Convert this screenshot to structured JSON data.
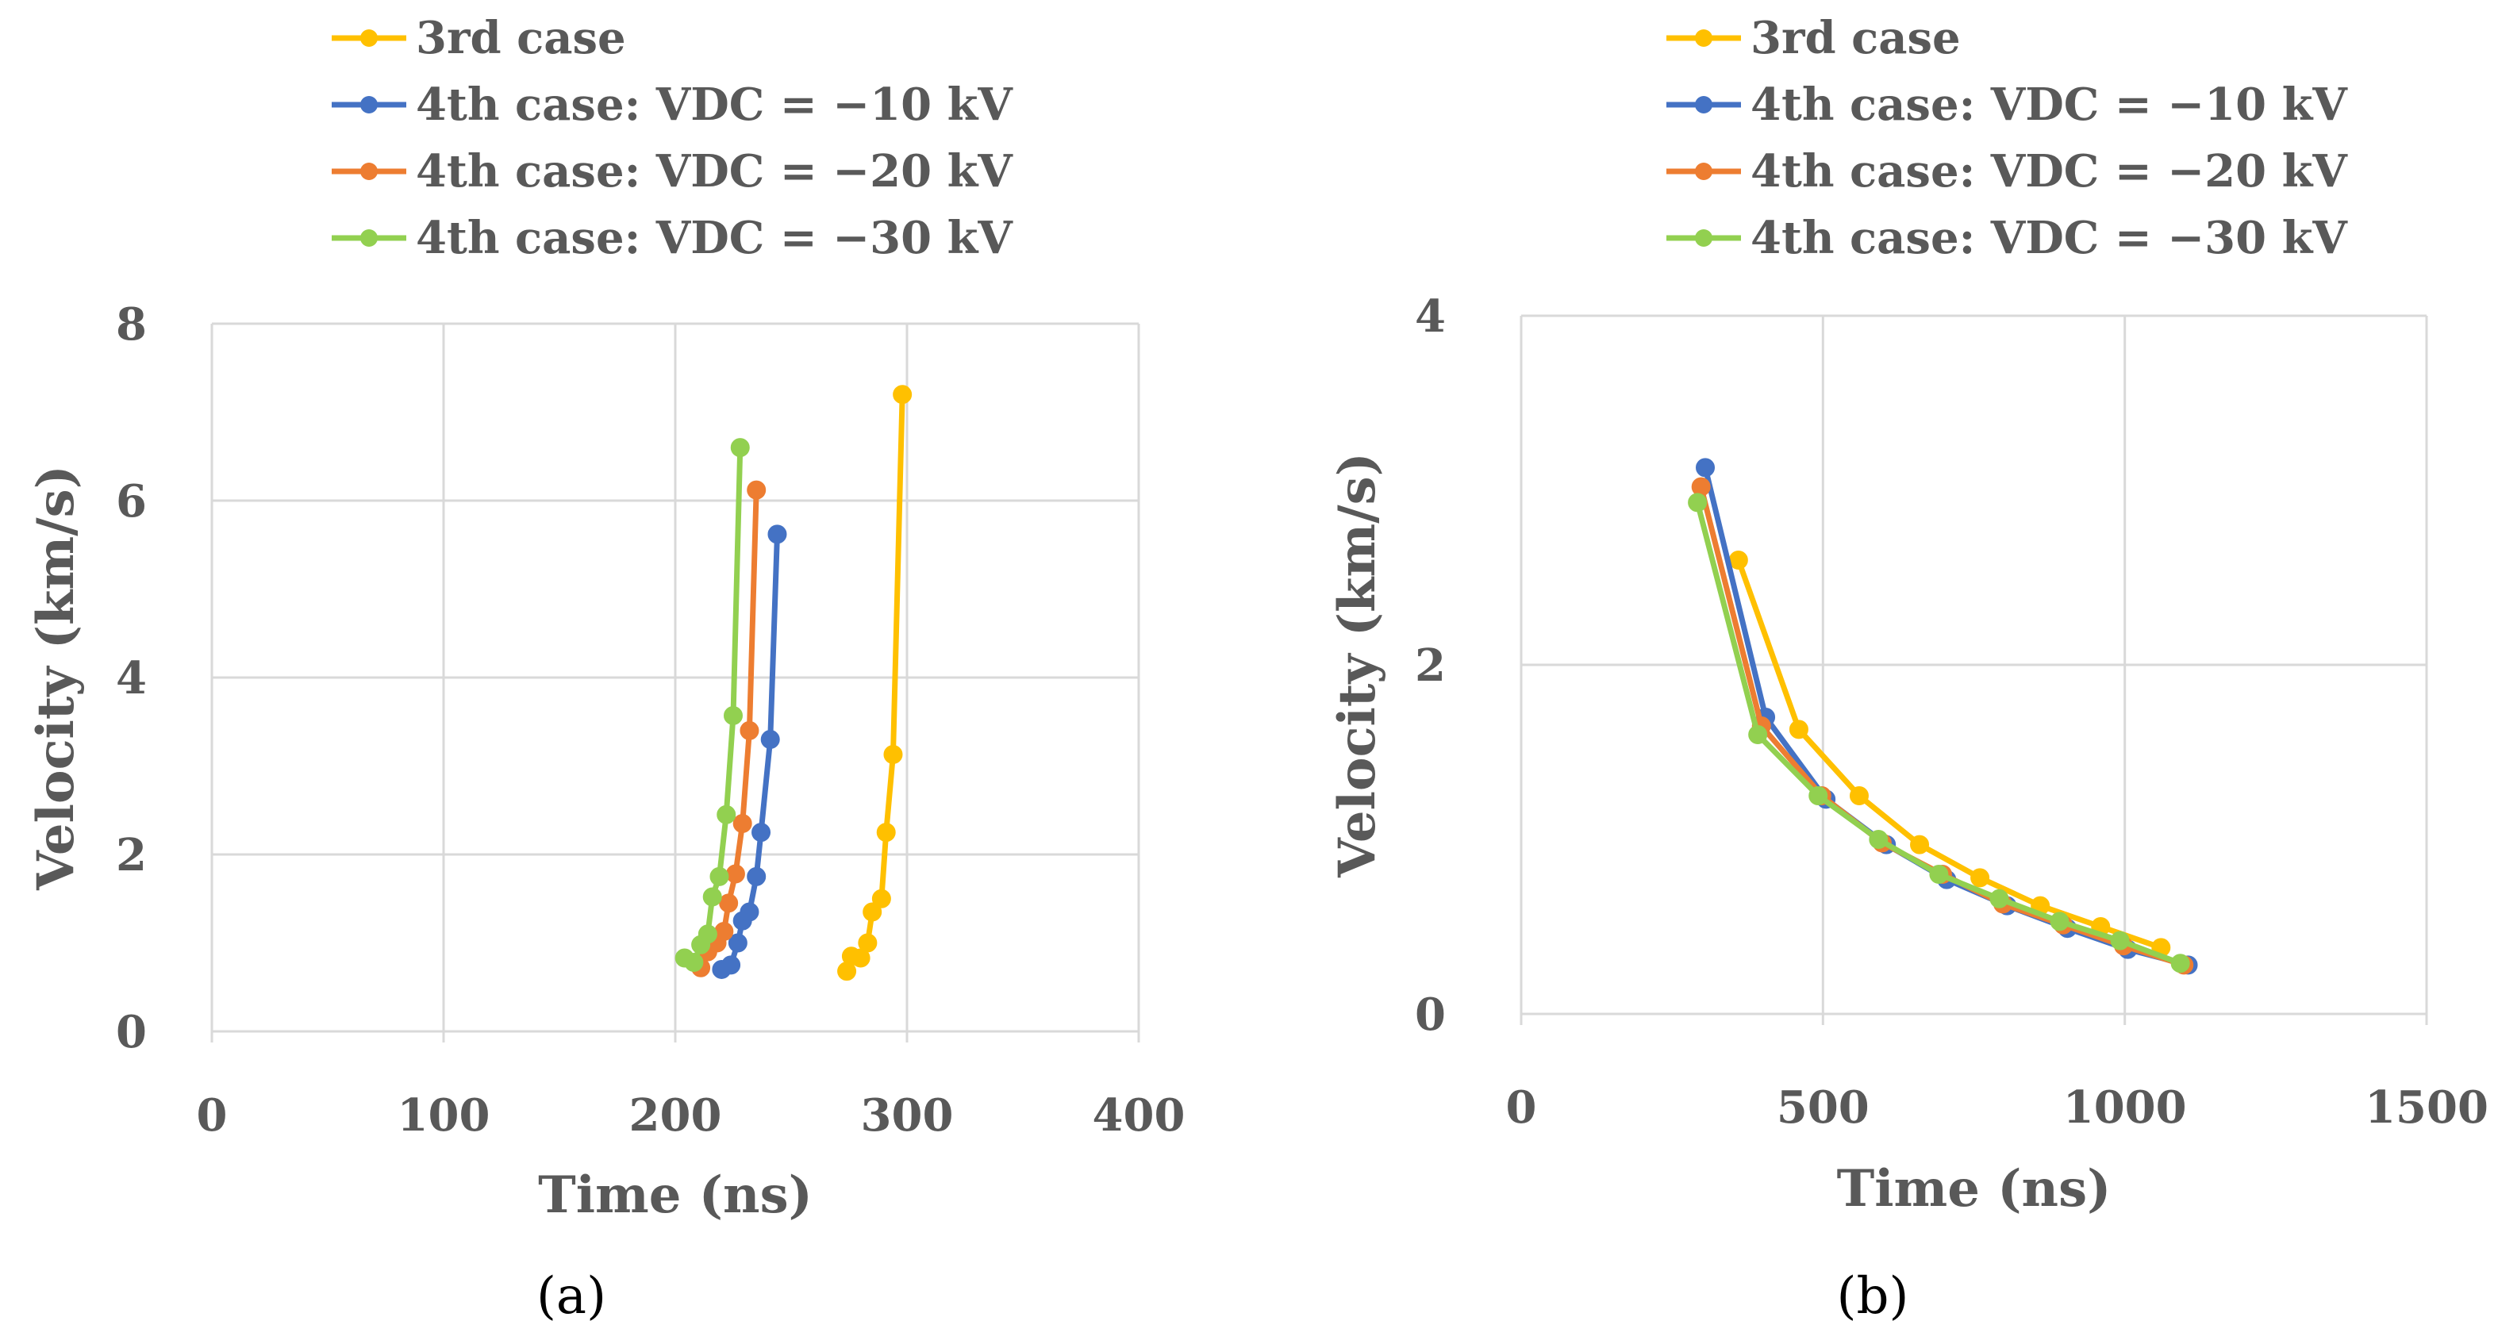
{
  "chart_data": [
    {
      "type": "line",
      "panel": "a",
      "panel_label": "(a)",
      "xlabel": "Time (ns)",
      "ylabel": "Velocity (km/s)",
      "xlim": [
        0,
        400
      ],
      "ylim": [
        0,
        8
      ],
      "xticks": [
        0,
        100,
        200,
        300,
        400
      ],
      "yticks": [
        0,
        2,
        4,
        6,
        8
      ],
      "xtick_labels": [
        "0",
        "100",
        "200",
        "300",
        "400"
      ],
      "ytick_labels": [
        "0",
        "2",
        "4",
        "6",
        "8"
      ],
      "grid": true,
      "legend_position": "top",
      "series": [
        {
          "name": "3rd case",
          "color": "#ffc000",
          "x": [
            274,
            276,
            280,
            283,
            285,
            289,
            291,
            294,
            298
          ],
          "y": [
            0.68,
            0.85,
            0.83,
            1.0,
            1.35,
            1.5,
            2.25,
            3.13,
            7.2
          ]
        },
        {
          "name": "4th case: VDC = −10 kV",
          "color": "#4472c4",
          "x": [
            220,
            224,
            227,
            229,
            232,
            235,
            237,
            241,
            244
          ],
          "y": [
            0.7,
            0.75,
            1.0,
            1.25,
            1.35,
            1.75,
            2.25,
            3.3,
            5.62
          ]
        },
        {
          "name": "4th case: VDC = −20 kV",
          "color": "#ed7d31",
          "x": [
            211,
            214,
            218,
            221,
            223,
            226,
            229,
            232,
            235
          ],
          "y": [
            0.72,
            0.9,
            1.0,
            1.13,
            1.45,
            1.78,
            2.35,
            3.4,
            6.12
          ]
        },
        {
          "name": "4th case: VDC = −30 kV",
          "color": "#92d050",
          "x": [
            204,
            208,
            211,
            214,
            216,
            219,
            222,
            225,
            228
          ],
          "y": [
            0.83,
            0.78,
            0.98,
            1.1,
            1.52,
            1.75,
            2.45,
            3.57,
            6.6
          ]
        }
      ]
    },
    {
      "type": "line",
      "panel": "b",
      "panel_label": "(b)",
      "xlabel": "Time (ns)",
      "ylabel": "Velocity (km/s)",
      "xlim": [
        0,
        1500
      ],
      "ylim": [
        0,
        4
      ],
      "xticks": [
        0,
        500,
        1000,
        1500
      ],
      "yticks": [
        0,
        2,
        4
      ],
      "xtick_labels": [
        "0",
        "500",
        "1000",
        "1500"
      ],
      "ytick_labels": [
        "0",
        "2",
        "4"
      ],
      "grid": true,
      "legend_position": "top",
      "series": [
        {
          "name": "3rd case",
          "color": "#ffc000",
          "x": [
            360,
            460,
            560,
            660,
            760,
            860,
            960,
            1060
          ],
          "y": [
            2.6,
            1.63,
            1.25,
            0.97,
            0.78,
            0.62,
            0.5,
            0.38
          ]
        },
        {
          "name": "4th case: VDC = −10 kV",
          "color": "#4472c4",
          "x": [
            305,
            405,
            505,
            605,
            705,
            805,
            905,
            1005,
            1105
          ],
          "y": [
            3.13,
            1.7,
            1.23,
            0.97,
            0.77,
            0.62,
            0.49,
            0.37,
            0.28
          ]
        },
        {
          "name": "4th case: VDC = −20 kV",
          "color": "#ed7d31",
          "x": [
            298,
            398,
            498,
            598,
            698,
            798,
            898,
            998,
            1098
          ],
          "y": [
            3.02,
            1.65,
            1.25,
            0.98,
            0.8,
            0.63,
            0.51,
            0.39,
            0.28
          ]
        },
        {
          "name": "4th case: VDC = −30 kV",
          "color": "#92d050",
          "x": [
            292,
            392,
            492,
            592,
            692,
            792,
            892,
            992,
            1092
          ],
          "y": [
            2.93,
            1.6,
            1.25,
            1.0,
            0.8,
            0.66,
            0.53,
            0.42,
            0.29
          ]
        }
      ]
    }
  ]
}
